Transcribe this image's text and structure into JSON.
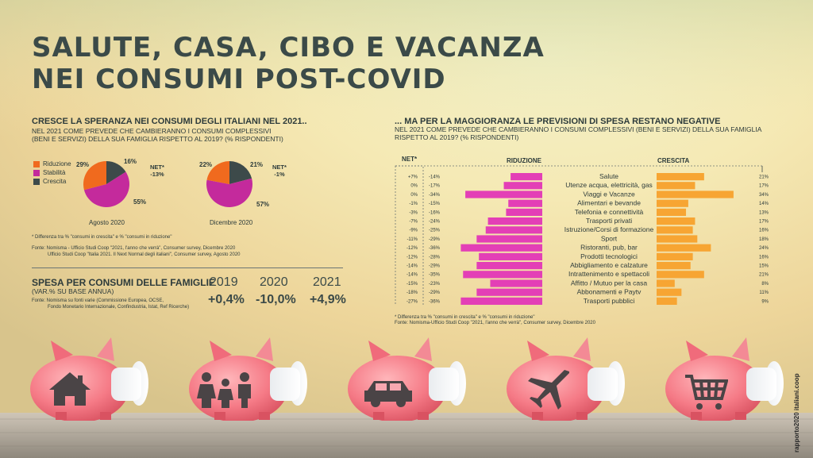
{
  "title_line1": "SALUTE, CASA, CIBO E VACANZA",
  "title_line2": "NEI CONSUMI POST-COVID",
  "left_section": {
    "title": "CRESCE LA SPERANZA NEI CONSUMI DEGLI ITALIANI NEL 2021..",
    "subtitle_line1": "NEL 2021 COME PREVEDE CHE CAMBIERANNO I CONSUMI COMPLESSIVI",
    "subtitle_line2": "(BENI E SERVIZI) DELLA SUA FAMIGLIA RISPETTO AL 2019? (% RISPONDENTI)",
    "footnote": "* Differenza tra % \"consumi in crescita\" e % \"consumi in riduzione\"",
    "source_line1": "Fonte: Nomisma - Ufficio Studi Coop \"2021, l'anno che verrà\", Consumer survey, Dicembre 2020",
    "source_line2": "Ufficio Studi Coop \"Italia 2021. Il Next Normal degli italiani\", Consumer survey, Agosto 2020"
  },
  "spesa": {
    "title": "SPESA PER CONSUMI DELLE FAMIGLIE",
    "subtitle": "(VAR.% SU BASE ANNUA)",
    "source_line1": "Fonte: Nomisma su fonti varie (Commissione Europea, OCSE,",
    "source_line2": "Fondo Monetario Internazionale, Confindustria, Istat, Ref Ricerche)",
    "years": [
      "2019",
      "2020",
      "2021"
    ],
    "values": [
      "+0,4%",
      "-10,0%",
      "+4,9%"
    ]
  },
  "right_section": {
    "title": "... MA PER LA MAGGIORANZA LE PREVISIONI DI SPESA RESTANO NEGATIVE",
    "subtitle_line1": "NEL 2021 COME PREVEDE CHE CAMBIERANNO I CONSUMI COMPLESSIVI (BENI E SERVIZI) DELLA SUA FAMIGLIA",
    "subtitle_line2": "RISPETTO AL 2019? (% RISPONDENTI)",
    "net_header": "NET*",
    "riduzione_header": "RIDUZIONE",
    "crescita_header": "CRESCITA",
    "footnote": "* Differenza tra % \"consumi in crescita\" e % \"consumi in riduzione\"",
    "source": "Fonte: Nomisma-Ufficio Studi Coop \"2021, l'anno che verrà\", Consumer survey, Dicembre 2020"
  },
  "side_text": "rapporto2020 italiani.coop",
  "colors": {
    "riduzione": "#f06a1e",
    "stabilita": "#c42a9c",
    "crescita": "#3d4a4a",
    "bar_riduzione": "#e33fb6",
    "bar_crescita": "#f7a533"
  },
  "icons": [
    "house-icon",
    "family-icon",
    "car-icon",
    "airplane-icon",
    "shopping-cart-icon"
  ],
  "chart_data": [
    {
      "type": "pie",
      "title": "Agosto 2020",
      "labels": [
        "Riduzione",
        "Stabilità",
        "Crescita"
      ],
      "values": [
        29,
        55,
        16
      ],
      "value_labels": [
        "29%",
        "55%",
        "16%"
      ],
      "net_label": "NET*",
      "net_value": "-13%"
    },
    {
      "type": "pie",
      "title": "Dicembre 2020",
      "labels": [
        "Riduzione",
        "Stabilità",
        "Crescita"
      ],
      "values": [
        22,
        57,
        21
      ],
      "value_labels": [
        "22%",
        "57%",
        "21%"
      ],
      "net_label": "NET*",
      "net_value": "-1%"
    },
    {
      "type": "bar",
      "orientation": "horizontal-diverging",
      "categories": [
        "Salute",
        "Utenze acqua, elettricità, gas",
        "Viaggi e Vacanze",
        "Alimentari e bevande",
        "Telefonia e connettività",
        "Trasporti privati",
        "Istruzione/Corsi di formazione",
        "Sport",
        "Ristoranti, pub, bar",
        "Prodotti tecnologici",
        "Abbigliamento e calzature",
        "Intrattenimento e spettacoli",
        "Affitto / Mutuo per la casa",
        "Abbonamenti e Paytv",
        "Trasporti pubblici"
      ],
      "net": [
        "+7%",
        "0%",
        "0%",
        "-1%",
        "-3%",
        "-7%",
        "-9%",
        "-11%",
        "-12%",
        "-12%",
        "-14%",
        "-14%",
        "-15%",
        "-18%",
        "-27%"
      ],
      "riduzione_labels": [
        "-14%",
        "-17%",
        "-34%",
        "-15%",
        "-16%",
        "-24%",
        "-25%",
        "-29%",
        "-36%",
        "-28%",
        "-29%",
        "-35%",
        "-23%",
        "-29%",
        "-36%"
      ],
      "crescita_labels": [
        "21%",
        "17%",
        "34%",
        "14%",
        "13%",
        "17%",
        "16%",
        "18%",
        "24%",
        "16%",
        "15%",
        "21%",
        "8%",
        "11%",
        "9%"
      ],
      "series": [
        {
          "name": "RIDUZIONE",
          "values": [
            -14,
            -17,
            -34,
            -15,
            -16,
            -24,
            -25,
            -29,
            -36,
            -28,
            -29,
            -35,
            -23,
            -29,
            -36
          ]
        },
        {
          "name": "CRESCITA",
          "values": [
            21,
            17,
            34,
            14,
            13,
            17,
            16,
            18,
            24,
            16,
            15,
            21,
            8,
            11,
            9
          ]
        }
      ]
    }
  ]
}
